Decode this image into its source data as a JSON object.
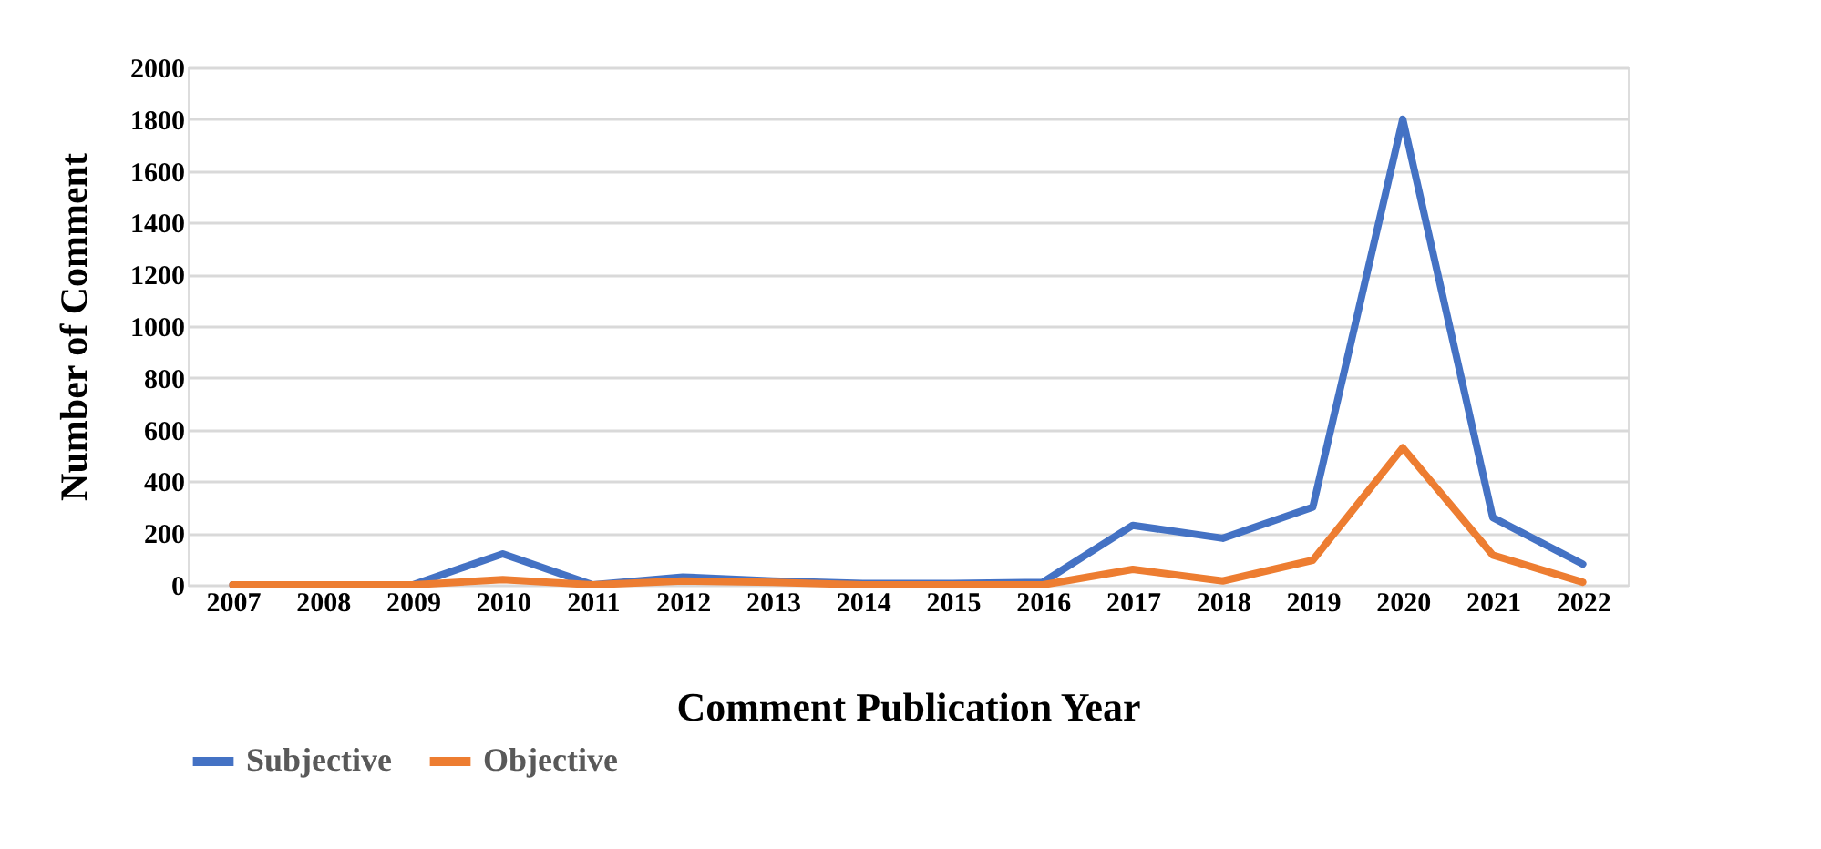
{
  "chart_data": {
    "type": "line",
    "xlabel": "Comment Publication Year",
    "ylabel": "Number of Comment",
    "categories": [
      "2007",
      "2008",
      "2009",
      "2010",
      "2011",
      "2012",
      "2013",
      "2014",
      "2015",
      "2016",
      "2017",
      "2018",
      "2019",
      "2020",
      "2021",
      "2022"
    ],
    "series": [
      {
        "name": "Subjective",
        "color": "#4472c4",
        "values": [
          0,
          0,
          0,
          120,
          0,
          30,
          15,
          5,
          5,
          10,
          230,
          180,
          300,
          1800,
          260,
          80
        ]
      },
      {
        "name": "Objective",
        "color": "#ed7d31",
        "values": [
          0,
          0,
          0,
          20,
          0,
          15,
          10,
          0,
          0,
          0,
          60,
          15,
          95,
          530,
          115,
          10
        ]
      }
    ],
    "ylim": [
      0,
      2000
    ],
    "yticks": [
      0,
      200,
      400,
      600,
      800,
      1000,
      1200,
      1400,
      1600,
      1800,
      2000
    ],
    "grid": "y",
    "legend": "bottom",
    "marker": "none",
    "line_style": "solid"
  }
}
